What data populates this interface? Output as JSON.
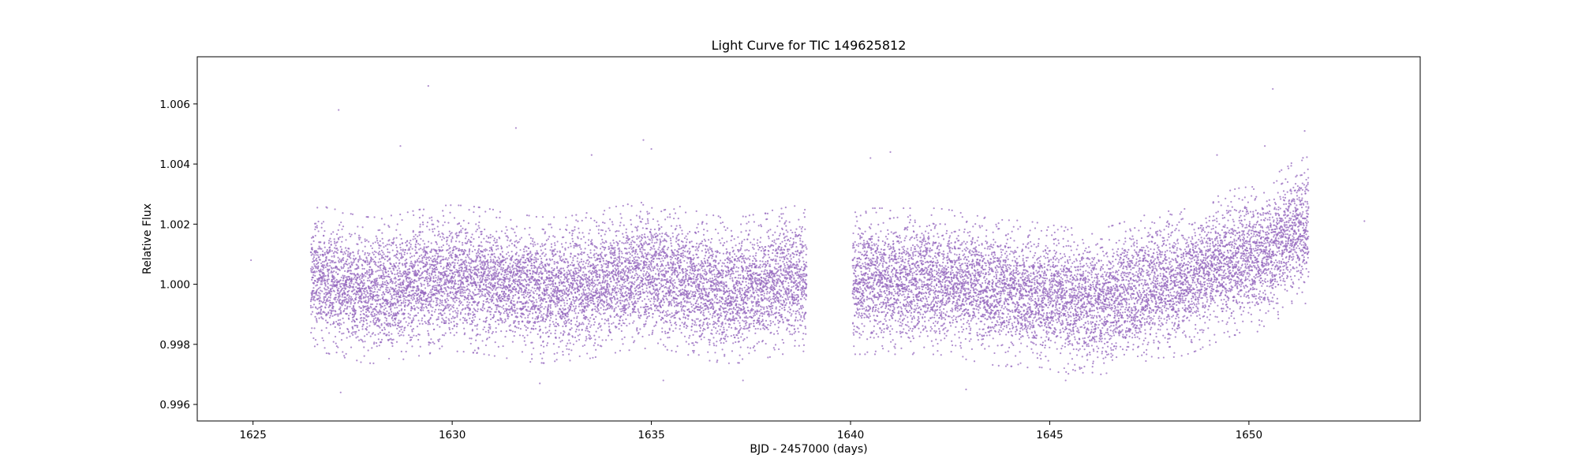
{
  "chart_data": {
    "type": "scatter",
    "title": "Light Curve for TIC 149625812",
    "xlabel": "BJD - 2457000 (days)",
    "ylabel": "Relative Flux",
    "xlim": [
      1623.6,
      1654.3
    ],
    "ylim": [
      0.99545,
      1.00757
    ],
    "x_ticks": [
      {
        "value": 1625,
        "label": "1625"
      },
      {
        "value": 1630,
        "label": "1630"
      },
      {
        "value": 1635,
        "label": "1635"
      },
      {
        "value": 1640,
        "label": "1640"
      },
      {
        "value": 1645,
        "label": "1645"
      },
      {
        "value": 1650,
        "label": "1650"
      }
    ],
    "y_ticks": [
      {
        "value": 0.996,
        "label": "0.996"
      },
      {
        "value": 0.998,
        "label": "0.998"
      },
      {
        "value": 1.0,
        "label": "1.000"
      },
      {
        "value": 1.002,
        "label": "1.002"
      },
      {
        "value": 1.004,
        "label": "1.004"
      },
      {
        "value": 1.006,
        "label": "1.006"
      }
    ],
    "grid": false,
    "marker_color": "#9467bd",
    "series": [
      {
        "segments": [
          {
            "x_start": 1626.45,
            "x_end": 1638.9,
            "flux_start": 1.0,
            "flux_end": 1.0002,
            "scatter": 0.0011,
            "cadence": 0.00139
          },
          {
            "x_start": 1640.05,
            "x_end": 1651.5,
            "flux_start": 0.9999,
            "flux_end": 1.0018,
            "scatter": 0.0011,
            "cadence": 0.00139
          }
        ],
        "trend_nodes": [
          {
            "x": 1626.45,
            "y": 1.0002
          },
          {
            "x": 1628.0,
            "y": 0.9998
          },
          {
            "x": 1630.0,
            "y": 1.0002
          },
          {
            "x": 1632.5,
            "y": 0.9998
          },
          {
            "x": 1635.0,
            "y": 1.0003
          },
          {
            "x": 1637.0,
            "y": 0.9998
          },
          {
            "x": 1638.9,
            "y": 1.0002
          },
          {
            "x": 1640.05,
            "y": 1.0001
          },
          {
            "x": 1642.0,
            "y": 1.0001
          },
          {
            "x": 1644.0,
            "y": 0.9997
          },
          {
            "x": 1646.0,
            "y": 0.9994
          },
          {
            "x": 1648.0,
            "y": 1.0
          },
          {
            "x": 1650.0,
            "y": 1.0008
          },
          {
            "x": 1651.5,
            "y": 1.0018
          }
        ],
        "outliers": [
          {
            "x": 1624.95,
            "y": 1.0008
          },
          {
            "x": 1627.15,
            "y": 1.0058
          },
          {
            "x": 1629.4,
            "y": 1.0066
          },
          {
            "x": 1628.7,
            "y": 1.0046
          },
          {
            "x": 1631.6,
            "y": 1.0052
          },
          {
            "x": 1634.8,
            "y": 1.0048
          },
          {
            "x": 1635.0,
            "y": 1.0045
          },
          {
            "x": 1633.5,
            "y": 1.0043
          },
          {
            "x": 1641.0,
            "y": 1.0044
          },
          {
            "x": 1640.5,
            "y": 1.0042
          },
          {
            "x": 1650.6,
            "y": 1.0065
          },
          {
            "x": 1650.4,
            "y": 1.0046
          },
          {
            "x": 1649.2,
            "y": 1.0043
          },
          {
            "x": 1651.4,
            "y": 1.0051
          },
          {
            "x": 1652.9,
            "y": 1.0021
          },
          {
            "x": 1627.2,
            "y": 0.9964
          },
          {
            "x": 1642.9,
            "y": 0.9965
          },
          {
            "x": 1645.4,
            "y": 0.9968
          },
          {
            "x": 1635.3,
            "y": 0.9968
          },
          {
            "x": 1637.3,
            "y": 0.9968
          },
          {
            "x": 1632.2,
            "y": 0.9967
          }
        ]
      }
    ]
  }
}
